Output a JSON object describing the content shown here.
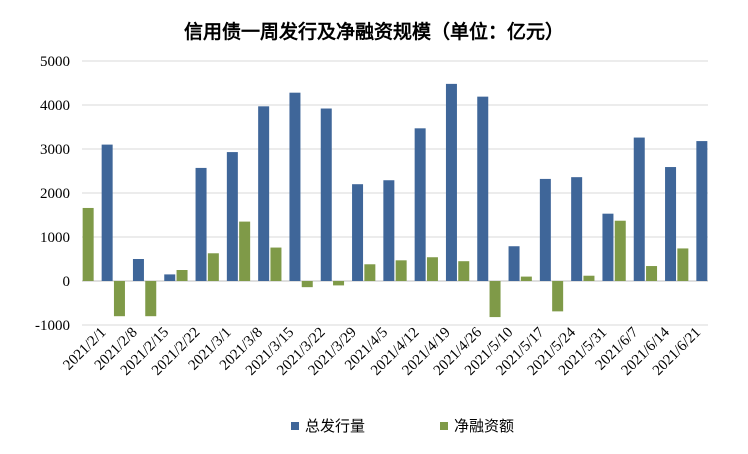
{
  "chart_data": {
    "type": "bar",
    "title": "信用债一周发行及净融资规模（单位：亿元）",
    "xlabel": "",
    "ylabel": "",
    "ylim": [
      -1000,
      5000
    ],
    "yticks": [
      -1000,
      0,
      1000,
      2000,
      3000,
      4000,
      5000
    ],
    "grid": true,
    "legend_position": "bottom",
    "categories": [
      "2021/2/1",
      "2021/2/8",
      "2021/2/15",
      "2021/2/22",
      "2021/3/1",
      "2021/3/8",
      "2021/3/15",
      "2021/3/22",
      "2021/3/29",
      "2021/4/5",
      "2021/4/12",
      "2021/4/19",
      "2021/4/26",
      "2021/5/10",
      "2021/5/17",
      "2021/5/24",
      "2021/5/31",
      "2021/6/7",
      "2021/6/14",
      "2021/6/21"
    ],
    "series": [
      {
        "name": "总发行量",
        "color": "#3f6699",
        "values": [
          3100,
          500,
          150,
          2570,
          2930,
          3970,
          4280,
          3920,
          2200,
          2290,
          3470,
          4480,
          4190,
          790,
          2320,
          2360,
          1530,
          3260,
          2590,
          3180
        ]
      },
      {
        "name": "净融资额",
        "color": "#7f9a48",
        "values": [
          1660,
          -800,
          -800,
          250,
          630,
          1350,
          760,
          -140,
          -100,
          380,
          470,
          540,
          450,
          -820,
          100,
          -690,
          120,
          1370,
          340,
          740
        ]
      }
    ]
  }
}
